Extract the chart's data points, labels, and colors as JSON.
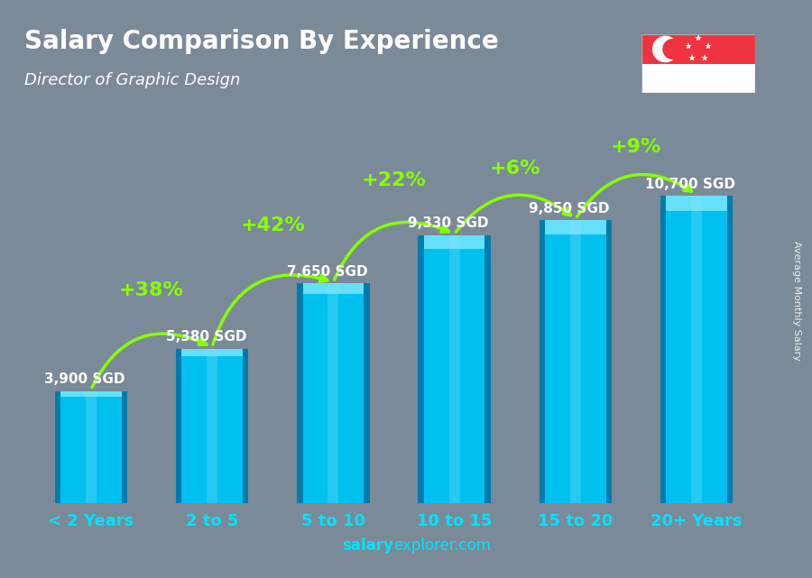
{
  "title": "Salary Comparison By Experience",
  "subtitle": "Director of Graphic Design",
  "categories": [
    "< 2 Years",
    "2 to 5",
    "5 to 10",
    "10 to 15",
    "15 to 20",
    "20+ Years"
  ],
  "values": [
    3900,
    5380,
    7650,
    9330,
    9850,
    10700
  ],
  "labels": [
    "3,900 SGD",
    "5,380 SGD",
    "7,650 SGD",
    "9,330 SGD",
    "9,850 SGD",
    "10,700 SGD"
  ],
  "pct_changes": [
    "+38%",
    "+42%",
    "+22%",
    "+6%",
    "+9%"
  ],
  "bar_color": "#00c0f0",
  "bar_edge_dark": "#006090",
  "bar_highlight": "#80e8ff",
  "bg_color": "#7a8a99",
  "title_color": "#ffffff",
  "subtitle_color": "#ffffff",
  "label_color": "#ffffff",
  "pct_color": "#88ff00",
  "xlabel_color": "#00e5ff",
  "footer_salary_color": "#00e5ff",
  "footer_rest_color": "#00e5ff",
  "ylabel_text": "Average Monthly Salary",
  "footer_text_bold": "salary",
  "footer_text_rest": "explorer.com",
  "ylim": [
    0,
    13500
  ],
  "figsize": [
    9.0,
    6.41
  ],
  "dpi": 100,
  "bar_width": 0.6,
  "arrow_lw": 2.5,
  "pct_fontsize": 16,
  "label_fontsize": 11,
  "cat_fontsize": 13
}
